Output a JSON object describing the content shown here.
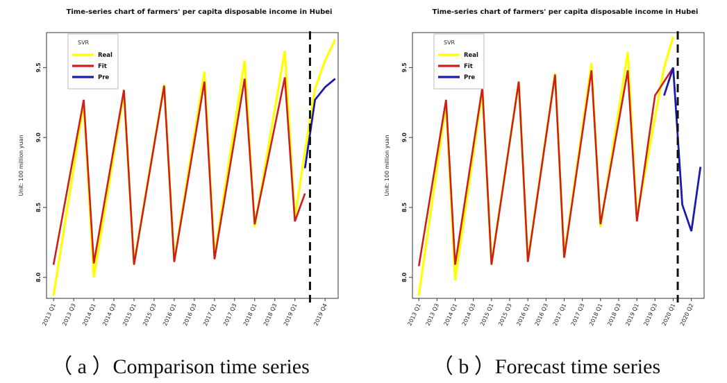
{
  "chart_data": [
    {
      "type": "line",
      "title": "Time-series chart of farmers' per capita disposable income in Hubei",
      "ylabel": "Unit: 100 million yuan",
      "ylim": [
        7.85,
        9.75
      ],
      "yticks": [
        8.0,
        8.5,
        9.0,
        9.5
      ],
      "ytick_labels": [
        "8.0",
        "8.5",
        "9.0",
        "9.5"
      ],
      "x_tick_labels": [
        "2013 Q1",
        "2013 Q3",
        "2014 Q1",
        "2014 Q3",
        "2015 Q1",
        "2015 Q3",
        "2016 Q1",
        "2016 Q3",
        "2017 Q1",
        "2017 Q3",
        "2018 Q1",
        "2018 Q3",
        "2019 Q1",
        "2019 Q4"
      ],
      "x_tick_positions": [
        0,
        2,
        4,
        6,
        8,
        10,
        12,
        14,
        16,
        18,
        20,
        22,
        24,
        27
      ],
      "xlim": [
        -0.7,
        28.3
      ],
      "legend": {
        "title": "SVR",
        "placement": "top-left",
        "entries": [
          "Real",
          "Fit",
          "Pre"
        ]
      },
      "divider_x": 25.5,
      "colors": {
        "real": "#ffff00",
        "fit": "#cc1f1a",
        "pre": "#1a1ab0"
      },
      "series": [
        {
          "name": "Real",
          "x": [
            0,
            3,
            4,
            7,
            8,
            11,
            12,
            15,
            16,
            19,
            20,
            23,
            24,
            25,
            26,
            27,
            28
          ],
          "values": [
            7.87,
            9.24,
            8.0,
            9.32,
            8.1,
            9.38,
            8.12,
            9.47,
            8.15,
            9.55,
            8.36,
            9.62,
            8.42,
            8.9,
            9.35,
            9.55,
            9.7
          ]
        },
        {
          "name": "Fit",
          "x": [
            0,
            3,
            4,
            7,
            8,
            11,
            12,
            15,
            16,
            19,
            20,
            23,
            24,
            25
          ],
          "values": [
            8.09,
            9.27,
            8.1,
            9.34,
            8.09,
            9.37,
            8.11,
            9.4,
            8.13,
            9.42,
            8.38,
            9.43,
            8.4,
            8.6
          ]
        },
        {
          "name": "Pre",
          "x": [
            25,
            26,
            27,
            28
          ],
          "values": [
            8.78,
            9.27,
            9.36,
            9.42
          ]
        }
      ]
    },
    {
      "type": "line",
      "title": "Time-series chart of farmers' per capita disposable income in Hubei",
      "ylabel": "Unit: 100 million yuan",
      "ylim": [
        7.85,
        9.75
      ],
      "yticks": [
        8.0,
        8.5,
        9.0,
        9.5
      ],
      "ytick_labels": [
        "8.0",
        "8.5",
        "9.0",
        "9.5"
      ],
      "x_tick_labels": [
        "2013 Q1",
        "2013 Q3",
        "2014 Q1",
        "2014 Q3",
        "2015 Q1",
        "2015 Q3",
        "2016 Q1",
        "2016 Q3",
        "2017 Q1",
        "2017 Q3",
        "2018 Q1",
        "2018 Q3",
        "2019 Q1",
        "2019 Q3",
        "2020 Q1",
        "2020 Q2"
      ],
      "x_tick_positions": [
        0,
        2,
        4,
        6,
        8,
        10,
        12,
        14,
        16,
        18,
        20,
        22,
        24,
        26,
        28,
        30
      ],
      "xlim": [
        -0.7,
        31.4
      ],
      "legend": {
        "title": "SVR",
        "placement": "top-left",
        "entries": [
          "Real",
          "Fit",
          "Pre"
        ]
      },
      "divider_x": 28.5,
      "colors": {
        "real": "#ffff00",
        "fit": "#cc1f1a",
        "pre": "#1a1ab0"
      },
      "series": [
        {
          "name": "Real",
          "x": [
            0,
            3,
            4,
            7,
            8,
            11,
            12,
            15,
            16,
            19,
            20,
            23,
            24,
            27,
            28
          ],
          "values": [
            7.87,
            9.24,
            7.98,
            9.33,
            8.1,
            9.4,
            8.12,
            9.46,
            8.15,
            9.53,
            8.36,
            9.61,
            8.43,
            9.5,
            9.72
          ]
        },
        {
          "name": "Fit",
          "x": [
            0,
            3,
            4,
            7,
            8,
            11,
            12,
            15,
            16,
            19,
            20,
            23,
            24,
            26,
            28
          ],
          "values": [
            8.08,
            9.27,
            8.09,
            9.36,
            8.09,
            9.4,
            8.11,
            9.45,
            8.14,
            9.48,
            8.38,
            9.48,
            8.4,
            9.3,
            9.5
          ]
        },
        {
          "name": "Pre",
          "x": [
            27,
            28,
            29,
            30,
            31
          ],
          "values": [
            9.3,
            9.5,
            8.52,
            8.33,
            8.79
          ]
        }
      ]
    }
  ],
  "captions": [
    "（ a ）Comparison time series",
    "（ b ）Forecast time series"
  ]
}
